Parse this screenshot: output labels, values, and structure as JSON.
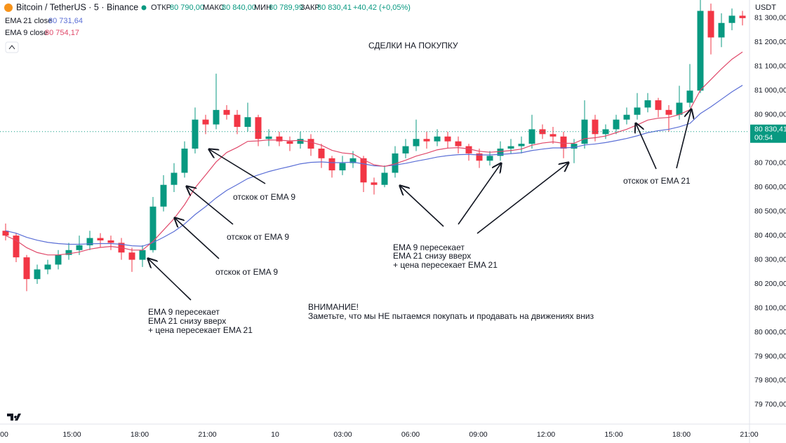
{
  "header": {
    "symbol": "Bitcoin / TetherUS · 5 · Binance",
    "open_label": "ОТКР",
    "open": "80 790,00",
    "high_label": "МАКС",
    "high": "80 840,00",
    "low_label": "МИН",
    "low": "80 789,99",
    "close_label": "ЗАКР",
    "close": "80 830,41",
    "change": "+40,42 (+0,05%)",
    "currency": "USDT"
  },
  "annotations": {
    "title": "СДЕЛКИ НА ПОКУПКУ",
    "bounce_1": "отскок от EMA 9",
    "bounce_2": "отскок от EMA 9",
    "bounce_3": "отскок от EMA 9",
    "cross_1": [
      "EMA 9 пересекает",
      "EMA 21 снизу вверх",
      "+ цена пересекает EMA 21"
    ],
    "cross_2": [
      "EMA 9 пересекает",
      "EMA 21 снизу вверх",
      "+ цена пересекает EMA 21"
    ],
    "warning": [
      "ВНИМАНИЕ!",
      "Заметьте, что мы НЕ пытаемся покупать и продавать на движениях вниз"
    ],
    "bounce_21": "отскок от EMA 21"
  },
  "chart_data": {
    "type": "candlestick",
    "ylim": [
      79620,
      81375
    ],
    "yticks": [
      {
        "value": 79700,
        "label": "79 700,00"
      },
      {
        "value": 79800,
        "label": "79 800,00"
      },
      {
        "value": 79900,
        "label": "79 900,00"
      },
      {
        "value": 80000,
        "label": "80 000,00"
      },
      {
        "value": 80100,
        "label": "80 100,00"
      },
      {
        "value": 80200,
        "label": "80 200,00"
      },
      {
        "value": 80300,
        "label": "80 300,00"
      },
      {
        "value": 80400,
        "label": "80 400,00"
      },
      {
        "value": 80500,
        "label": "80 500,00"
      },
      {
        "value": 80600,
        "label": "80 600,00"
      },
      {
        "value": 80700,
        "label": "80 700,00"
      },
      {
        "value": 80800,
        "label": "80 800,00"
      },
      {
        "value": 80900,
        "label": "80 900,00"
      },
      {
        "value": 81000,
        "label": "81 000,00"
      },
      {
        "value": 81100,
        "label": "81 100,00"
      },
      {
        "value": 81200,
        "label": "81 200,00"
      },
      {
        "value": 81300,
        "label": "81 300,00"
      }
    ],
    "time_labels": [
      "00",
      "15:00",
      "18:00",
      "21:00",
      "10",
      "03:00",
      "06:00",
      "09:00",
      "12:00",
      "15:00",
      "18:00",
      "21:00"
    ],
    "up_color": "#089981",
    "down_color": "#f23645",
    "ohlc": [
      [
        80420,
        80450,
        80380,
        80400
      ],
      [
        80400,
        80410,
        80290,
        80310
      ],
      [
        80310,
        80320,
        80170,
        80220
      ],
      [
        80220,
        80280,
        80200,
        80260
      ],
      [
        80260,
        80300,
        80240,
        80280
      ],
      [
        80280,
        80340,
        80260,
        80320
      ],
      [
        80320,
        80370,
        80300,
        80340
      ],
      [
        80340,
        80400,
        80320,
        80360
      ],
      [
        80360,
        80420,
        80340,
        80390
      ],
      [
        80390,
        80410,
        80350,
        80380
      ],
      [
        80380,
        80400,
        80340,
        80370
      ],
      [
        80370,
        80390,
        80300,
        80330
      ],
      [
        80330,
        80350,
        80250,
        80300
      ],
      [
        80300,
        80360,
        80270,
        80340
      ],
      [
        80340,
        80560,
        80330,
        80520
      ],
      [
        80520,
        80650,
        80500,
        80610
      ],
      [
        80610,
        80700,
        80580,
        80660
      ],
      [
        80660,
        80790,
        80640,
        80760
      ],
      [
        80760,
        80930,
        80740,
        80880
      ],
      [
        80880,
        80900,
        80820,
        80860
      ],
      [
        80860,
        81070,
        80840,
        80920
      ],
      [
        80920,
        80940,
        80880,
        80900
      ],
      [
        80900,
        80920,
        80820,
        80850
      ],
      [
        80850,
        80950,
        80830,
        80890
      ],
      [
        80890,
        80900,
        80770,
        80800
      ],
      [
        80800,
        80840,
        80770,
        80810
      ],
      [
        80810,
        80830,
        80770,
        80790
      ],
      [
        80790,
        80810,
        80750,
        80780
      ],
      [
        80780,
        80830,
        80760,
        80800
      ],
      [
        80800,
        80820,
        80730,
        80760
      ],
      [
        80760,
        80780,
        80680,
        80720
      ],
      [
        80720,
        80730,
        80640,
        80670
      ],
      [
        80670,
        80730,
        80650,
        80700
      ],
      [
        80700,
        80750,
        80680,
        80720
      ],
      [
        80720,
        80730,
        80580,
        80620
      ],
      [
        80620,
        80640,
        80570,
        80610
      ],
      [
        80610,
        80690,
        80600,
        80660
      ],
      [
        80660,
        80770,
        80640,
        80740
      ],
      [
        80740,
        80800,
        80720,
        80770
      ],
      [
        80770,
        80880,
        80750,
        80800
      ],
      [
        80800,
        80830,
        80760,
        80790
      ],
      [
        80790,
        80840,
        80770,
        80810
      ],
      [
        80810,
        80830,
        80760,
        80790
      ],
      [
        80790,
        80810,
        80740,
        80770
      ],
      [
        80770,
        80780,
        80710,
        80740
      ],
      [
        80740,
        80760,
        80680,
        80710
      ],
      [
        80710,
        80750,
        80690,
        80730
      ],
      [
        80730,
        80790,
        80710,
        80760
      ],
      [
        80760,
        80800,
        80740,
        80770
      ],
      [
        80770,
        80810,
        80740,
        80780
      ],
      [
        80780,
        80900,
        80760,
        80840
      ],
      [
        80840,
        80860,
        80800,
        80820
      ],
      [
        80820,
        80850,
        80780,
        80810
      ],
      [
        80810,
        80830,
        80720,
        80760
      ],
      [
        80760,
        80800,
        80700,
        80780
      ],
      [
        80780,
        80960,
        80760,
        80880
      ],
      [
        80880,
        80900,
        80790,
        80820
      ],
      [
        80820,
        80860,
        80800,
        80840
      ],
      [
        80840,
        80900,
        80820,
        80880
      ],
      [
        80880,
        80930,
        80860,
        80900
      ],
      [
        80900,
        80990,
        80880,
        80930
      ],
      [
        80930,
        80990,
        80910,
        80960
      ],
      [
        80960,
        80970,
        80890,
        80920
      ],
      [
        80920,
        80940,
        80830,
        80900
      ],
      [
        80900,
        81020,
        80880,
        80950
      ],
      [
        80950,
        81110,
        80930,
        81000
      ],
      [
        81000,
        81400,
        80990,
        81330
      ],
      [
        81330,
        81360,
        81150,
        81220
      ],
      [
        81220,
        81320,
        81180,
        81280
      ],
      [
        81280,
        81340,
        81250,
        81310
      ],
      [
        81310,
        81330,
        81270,
        81300
      ]
    ],
    "series": [
      {
        "name": "EMA 21 close",
        "color": "#5b6fd6",
        "legend_value": {
          "value": 80731.64,
          "label": "80 731,64"
        },
        "values": [
          80420,
          80410,
          80393,
          80381,
          80372,
          80367,
          80364,
          80364,
          80366,
          80367,
          80367,
          80364,
          80358,
          80356,
          80371,
          80393,
          80417,
          80448,
          80487,
          80520,
          80556,
          80587,
          80611,
          80636,
          80651,
          80665,
          80676,
          80686,
          80697,
          80703,
          80705,
          80702,
          80702,
          80704,
          80697,
          80689,
          80687,
          80692,
          80699,
          80708,
          80716,
          80725,
          80731,
          80735,
          80736,
          80734,
          80734,
          80736,
          80739,
          80743,
          80752,
          80758,
          80763,
          80763,
          80765,
          80775,
          80779,
          80785,
          80793,
          80802,
          80813,
          80826,
          80834,
          80840,
          80850,
          80864,
          80905,
          80933,
          80964,
          80995,
          81022
        ]
      },
      {
        "name": "EMA 9 close",
        "color": "#e0496a",
        "legend_value": {
          "value": 80754.17,
          "label": "80 754,17"
        },
        "values": [
          80400,
          80380,
          80350,
          80330,
          80320,
          80320,
          80325,
          80332,
          80344,
          80351,
          80355,
          80350,
          80340,
          80340,
          80376,
          80423,
          80470,
          80528,
          80598,
          80651,
          80705,
          80744,
          80765,
          80790,
          80792,
          80796,
          80795,
          80792,
          80794,
          80787,
          80774,
          80753,
          80742,
          80738,
          80714,
          80693,
          80686,
          80697,
          80712,
          80729,
          80741,
          80755,
          80762,
          80764,
          80759,
          80749,
          80745,
          80748,
          80752,
          80758,
          80774,
          80783,
          80788,
          80782,
          80782,
          80801,
          80805,
          80812,
          80826,
          80840,
          80858,
          80878,
          80886,
          80889,
          80901,
          80921,
          81002,
          81046,
          81090,
          81130,
          81160
        ]
      }
    ],
    "last_price": {
      "value": 80830.41,
      "label": "80 830,41",
      "countdown": "00:54"
    }
  }
}
